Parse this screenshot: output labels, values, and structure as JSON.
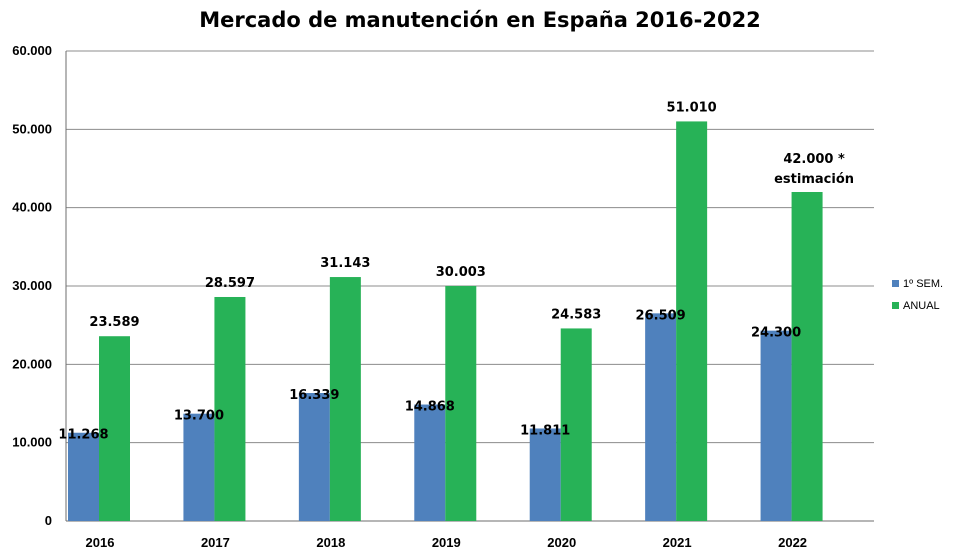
{
  "chart_data": {
    "type": "bar",
    "title": "Mercado de manutención en España 2016-2022",
    "categories": [
      "2016",
      "2017",
      "2018",
      "2019",
      "2020",
      "2021",
      "2022"
    ],
    "series": [
      {
        "name": "1º SEM.",
        "color": "#4f81bd",
        "values": [
          11268,
          13700,
          16339,
          14868,
          11811,
          26509,
          24300
        ],
        "labels": [
          "11.268",
          "13.700",
          "16.339",
          "14.868",
          "11.811",
          "26.509",
          "24.300"
        ]
      },
      {
        "name": "ANUAL",
        "color": "#27b257",
        "values": [
          23589,
          28597,
          31143,
          30003,
          24583,
          51010,
          42000
        ],
        "labels": [
          "23.589",
          "28.597",
          "31.143",
          "30.003",
          "24.583",
          "51.010",
          "42.000 *"
        ]
      }
    ],
    "annotation": "estimación",
    "ylim": [
      0,
      60000
    ],
    "yticks": [
      0,
      10000,
      20000,
      30000,
      40000,
      50000,
      60000
    ],
    "ytick_labels": [
      "0",
      "10.000",
      "20.000",
      "30.000",
      "40.000",
      "50.000",
      "60.000"
    ],
    "xlabel": "",
    "ylabel": "",
    "grid": true,
    "legend_position": "right"
  }
}
